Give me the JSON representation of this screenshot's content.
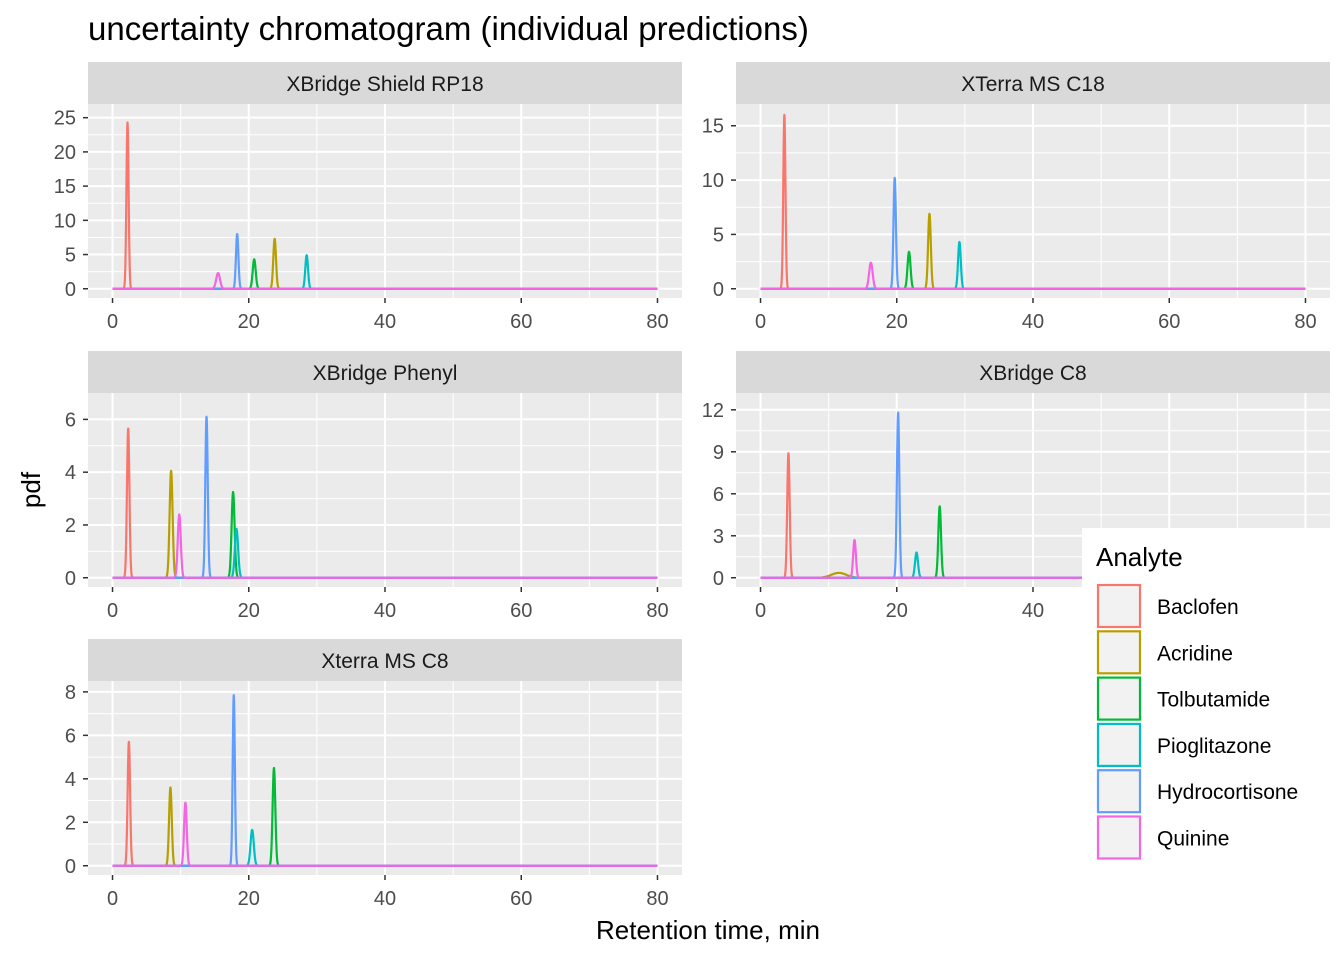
{
  "chart_data": {
    "type": "line",
    "title": "uncertainty chromatogram (individual predictions)",
    "xlabel": "Retention time, min",
    "ylabel": "pdf",
    "xlim": [
      0,
      80
    ],
    "x_ticks": [
      0,
      20,
      40,
      60,
      80
    ],
    "grid": true,
    "legend": {
      "title": "Analyte",
      "placement": "right",
      "entries": [
        {
          "name": "Baclofen",
          "color": "#F8766D"
        },
        {
          "name": "Acridine",
          "color": "#B79F00"
        },
        {
          "name": "Tolbutamide",
          "color": "#00BA38"
        },
        {
          "name": "Pioglitazone",
          "color": "#00BFC4"
        },
        {
          "name": "Hydrocortisone",
          "color": "#619CFF"
        },
        {
          "name": "Quinine",
          "color": "#F564E3"
        }
      ]
    },
    "panels": [
      {
        "name": "XBridge Shield RP18",
        "ylim": [
          0,
          27
        ],
        "y_ticks": [
          0,
          5,
          10,
          15,
          20,
          25
        ],
        "peaks": [
          {
            "analyte": "Baclofen",
            "rt": 2.2,
            "height": 24.3,
            "sd": 0.16
          },
          {
            "analyte": "Acridine",
            "rt": 23.8,
            "height": 7.3,
            "sd": 0.2
          },
          {
            "analyte": "Tolbutamide",
            "rt": 20.8,
            "height": 4.3,
            "sd": 0.22
          },
          {
            "analyte": "Pioglitazone",
            "rt": 28.5,
            "height": 4.9,
            "sd": 0.2
          },
          {
            "analyte": "Hydrocortisone",
            "rt": 18.3,
            "height": 8.0,
            "sd": 0.18
          },
          {
            "analyte": "Quinine",
            "rt": 15.5,
            "height": 2.3,
            "sd": 0.28
          }
        ]
      },
      {
        "name": "XTerra MS C18",
        "ylim": [
          0,
          17
        ],
        "y_ticks": [
          0,
          5,
          10,
          15
        ],
        "peaks": [
          {
            "analyte": "Baclofen",
            "rt": 3.5,
            "height": 16.0,
            "sd": 0.16
          },
          {
            "analyte": "Acridine",
            "rt": 24.8,
            "height": 6.9,
            "sd": 0.2
          },
          {
            "analyte": "Tolbutamide",
            "rt": 21.8,
            "height": 3.4,
            "sd": 0.22
          },
          {
            "analyte": "Pioglitazone",
            "rt": 29.2,
            "height": 4.3,
            "sd": 0.2
          },
          {
            "analyte": "Hydrocortisone",
            "rt": 19.7,
            "height": 10.2,
            "sd": 0.18
          },
          {
            "analyte": "Quinine",
            "rt": 16.2,
            "height": 2.4,
            "sd": 0.26
          }
        ]
      },
      {
        "name": "XBridge Phenyl",
        "ylim": [
          0,
          7.0
        ],
        "y_ticks": [
          0,
          2,
          4,
          6
        ],
        "peaks": [
          {
            "analyte": "Baclofen",
            "rt": 2.3,
            "height": 5.65,
            "sd": 0.18
          },
          {
            "analyte": "Acridine",
            "rt": 8.6,
            "height": 4.05,
            "sd": 0.22
          },
          {
            "analyte": "Tolbutamide",
            "rt": 17.7,
            "height": 3.25,
            "sd": 0.22
          },
          {
            "analyte": "Pioglitazone",
            "rt": 18.2,
            "height": 1.85,
            "sd": 0.24
          },
          {
            "analyte": "Hydrocortisone",
            "rt": 13.8,
            "height": 6.1,
            "sd": 0.18
          },
          {
            "analyte": "Quinine",
            "rt": 9.8,
            "height": 2.4,
            "sd": 0.22
          }
        ]
      },
      {
        "name": "XBridge C8",
        "ylim": [
          0,
          13.2
        ],
        "y_ticks": [
          0,
          3,
          6,
          9,
          12
        ],
        "peaks": [
          {
            "analyte": "Baclofen",
            "rt": 4.1,
            "height": 8.9,
            "sd": 0.18
          },
          {
            "analyte": "Acridine",
            "rt": 11.5,
            "height": 0.35,
            "sd": 1.1
          },
          {
            "analyte": "Tolbutamide",
            "rt": 26.3,
            "height": 5.1,
            "sd": 0.2
          },
          {
            "analyte": "Pioglitazone",
            "rt": 22.9,
            "height": 1.8,
            "sd": 0.22
          },
          {
            "analyte": "Hydrocortisone",
            "rt": 20.2,
            "height": 11.8,
            "sd": 0.18
          },
          {
            "analyte": "Quinine",
            "rt": 13.8,
            "height": 2.7,
            "sd": 0.2
          }
        ]
      },
      {
        "name": "Xterra MS C8",
        "ylim": [
          0,
          8.5
        ],
        "y_ticks": [
          0,
          2,
          4,
          6,
          8
        ],
        "peaks": [
          {
            "analyte": "Baclofen",
            "rt": 2.4,
            "height": 5.7,
            "sd": 0.18
          },
          {
            "analyte": "Acridine",
            "rt": 8.5,
            "height": 3.6,
            "sd": 0.2
          },
          {
            "analyte": "Tolbutamide",
            "rt": 23.7,
            "height": 4.5,
            "sd": 0.2
          },
          {
            "analyte": "Pioglitazone",
            "rt": 20.5,
            "height": 1.65,
            "sd": 0.24
          },
          {
            "analyte": "Hydrocortisone",
            "rt": 17.8,
            "height": 7.85,
            "sd": 0.16
          },
          {
            "analyte": "Quinine",
            "rt": 10.7,
            "height": 2.9,
            "sd": 0.2
          }
        ]
      }
    ]
  }
}
